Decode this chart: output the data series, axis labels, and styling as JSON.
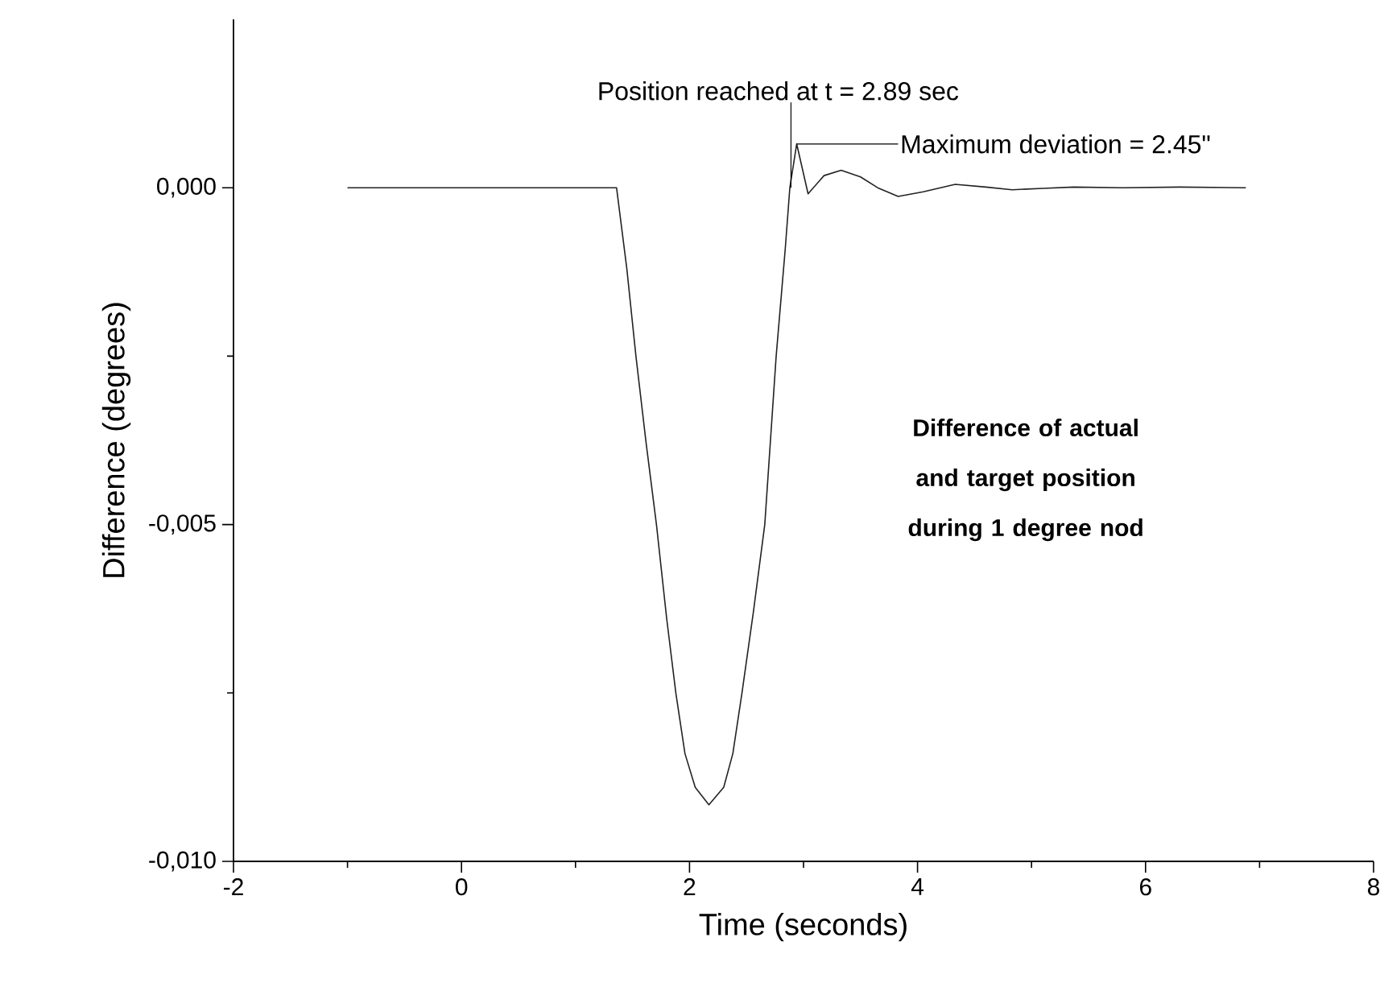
{
  "chart_data": {
    "type": "line",
    "xlabel": "Time (seconds)",
    "ylabel": "Difference (degrees)",
    "xlim": [
      -2,
      8
    ],
    "ylim": [
      -0.01,
      0.0025
    ],
    "xticks": [
      -2,
      {
        "value": -1,
        "label": null
      },
      0,
      {
        "value": 1,
        "label": null
      },
      2,
      {
        "value": 3,
        "label": null
      },
      4,
      {
        "value": 5,
        "label": null
      },
      6,
      {
        "value": 7,
        "label": null
      },
      8
    ],
    "yticks": [
      {
        "value": -0.01,
        "label": "-0,010"
      },
      {
        "value": -0.0075,
        "label": null
      },
      {
        "value": -0.005,
        "label": "-0,005"
      },
      {
        "value": -0.0025,
        "label": null
      },
      {
        "value": 0,
        "label": "0,000"
      }
    ],
    "series": [
      {
        "color": "#222222",
        "x": [
          -1.0,
          1.36,
          1.45,
          1.53,
          1.62,
          1.71,
          1.8,
          1.88,
          1.96,
          2.05,
          2.17,
          2.3,
          2.38,
          2.46,
          2.56,
          2.66,
          2.76,
          2.84,
          2.88,
          2.94,
          3.04,
          3.18,
          3.33,
          3.5,
          3.65,
          3.83,
          4.05,
          4.33,
          4.6,
          4.83,
          5.1,
          5.37,
          5.8,
          6.3,
          6.88
        ],
        "values": [
          0,
          0,
          -0.0012,
          -0.0025,
          -0.0038,
          -0.005,
          -0.0064,
          -0.0075,
          -0.0084,
          -0.0089,
          -0.00916,
          -0.0089,
          -0.0084,
          -0.0075,
          -0.0063,
          -0.005,
          -0.0025,
          -0.0009,
          0,
          0.00065,
          -9e-05,
          0.00018,
          0.00026,
          0.00016,
          0.0,
          -0.00013,
          -6e-05,
          5e-05,
          1e-05,
          -3e-05,
          -1e-05,
          1e-05,
          0,
          1e-05,
          0
        ]
      }
    ],
    "annotations": [
      {
        "text": "Position reached at t = 2.89 sec",
        "x": 2.89,
        "y": 0
      },
      {
        "text": "Maximum deviation = 2.45\"",
        "x": 2.94,
        "y": 0.00065
      },
      "Difference of actual and target position during 1 degree nod"
    ]
  }
}
